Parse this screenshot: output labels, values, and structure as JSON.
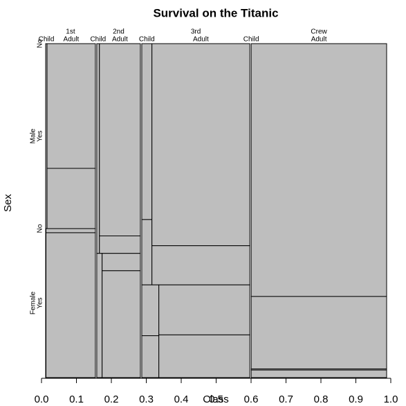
{
  "chart_data": {
    "type": "mosaic",
    "title": "Survival on the Titanic",
    "xlabel": "Class",
    "ylabel": "Sex",
    "classes": [
      "1st",
      "2nd",
      "3rd",
      "Crew"
    ],
    "sexes": [
      "Male",
      "Female"
    ],
    "ages": [
      "Child",
      "Adult"
    ],
    "survived": [
      "No",
      "Yes"
    ],
    "counts": [
      [
        [
          [
            0,
            5
          ],
          [
            118,
            57
          ]
        ],
        [
          [
            0,
            1
          ],
          [
            4,
            140
          ]
        ]
      ],
      [
        [
          [
            0,
            11
          ],
          [
            154,
            14
          ]
        ],
        [
          [
            0,
            13
          ],
          [
            13,
            80
          ]
        ]
      ],
      [
        [
          [
            35,
            13
          ],
          [
            387,
            75
          ]
        ],
        [
          [
            17,
            14
          ],
          [
            89,
            76
          ]
        ]
      ],
      [
        [
          [
            0,
            0
          ],
          [
            670,
            192
          ]
        ],
        [
          [
            0,
            0
          ],
          [
            3,
            20
          ]
        ]
      ]
    ],
    "color": "#bebebe",
    "xlim": [
      0,
      1
    ],
    "xticks": [
      {
        "value": 0,
        "label": "0.0"
      },
      0.1,
      0.2,
      0.3,
      0.4,
      0.5,
      0.6,
      0.7,
      0.8,
      0.9,
      {
        "value": 1,
        "label": "1.0"
      }
    ]
  }
}
